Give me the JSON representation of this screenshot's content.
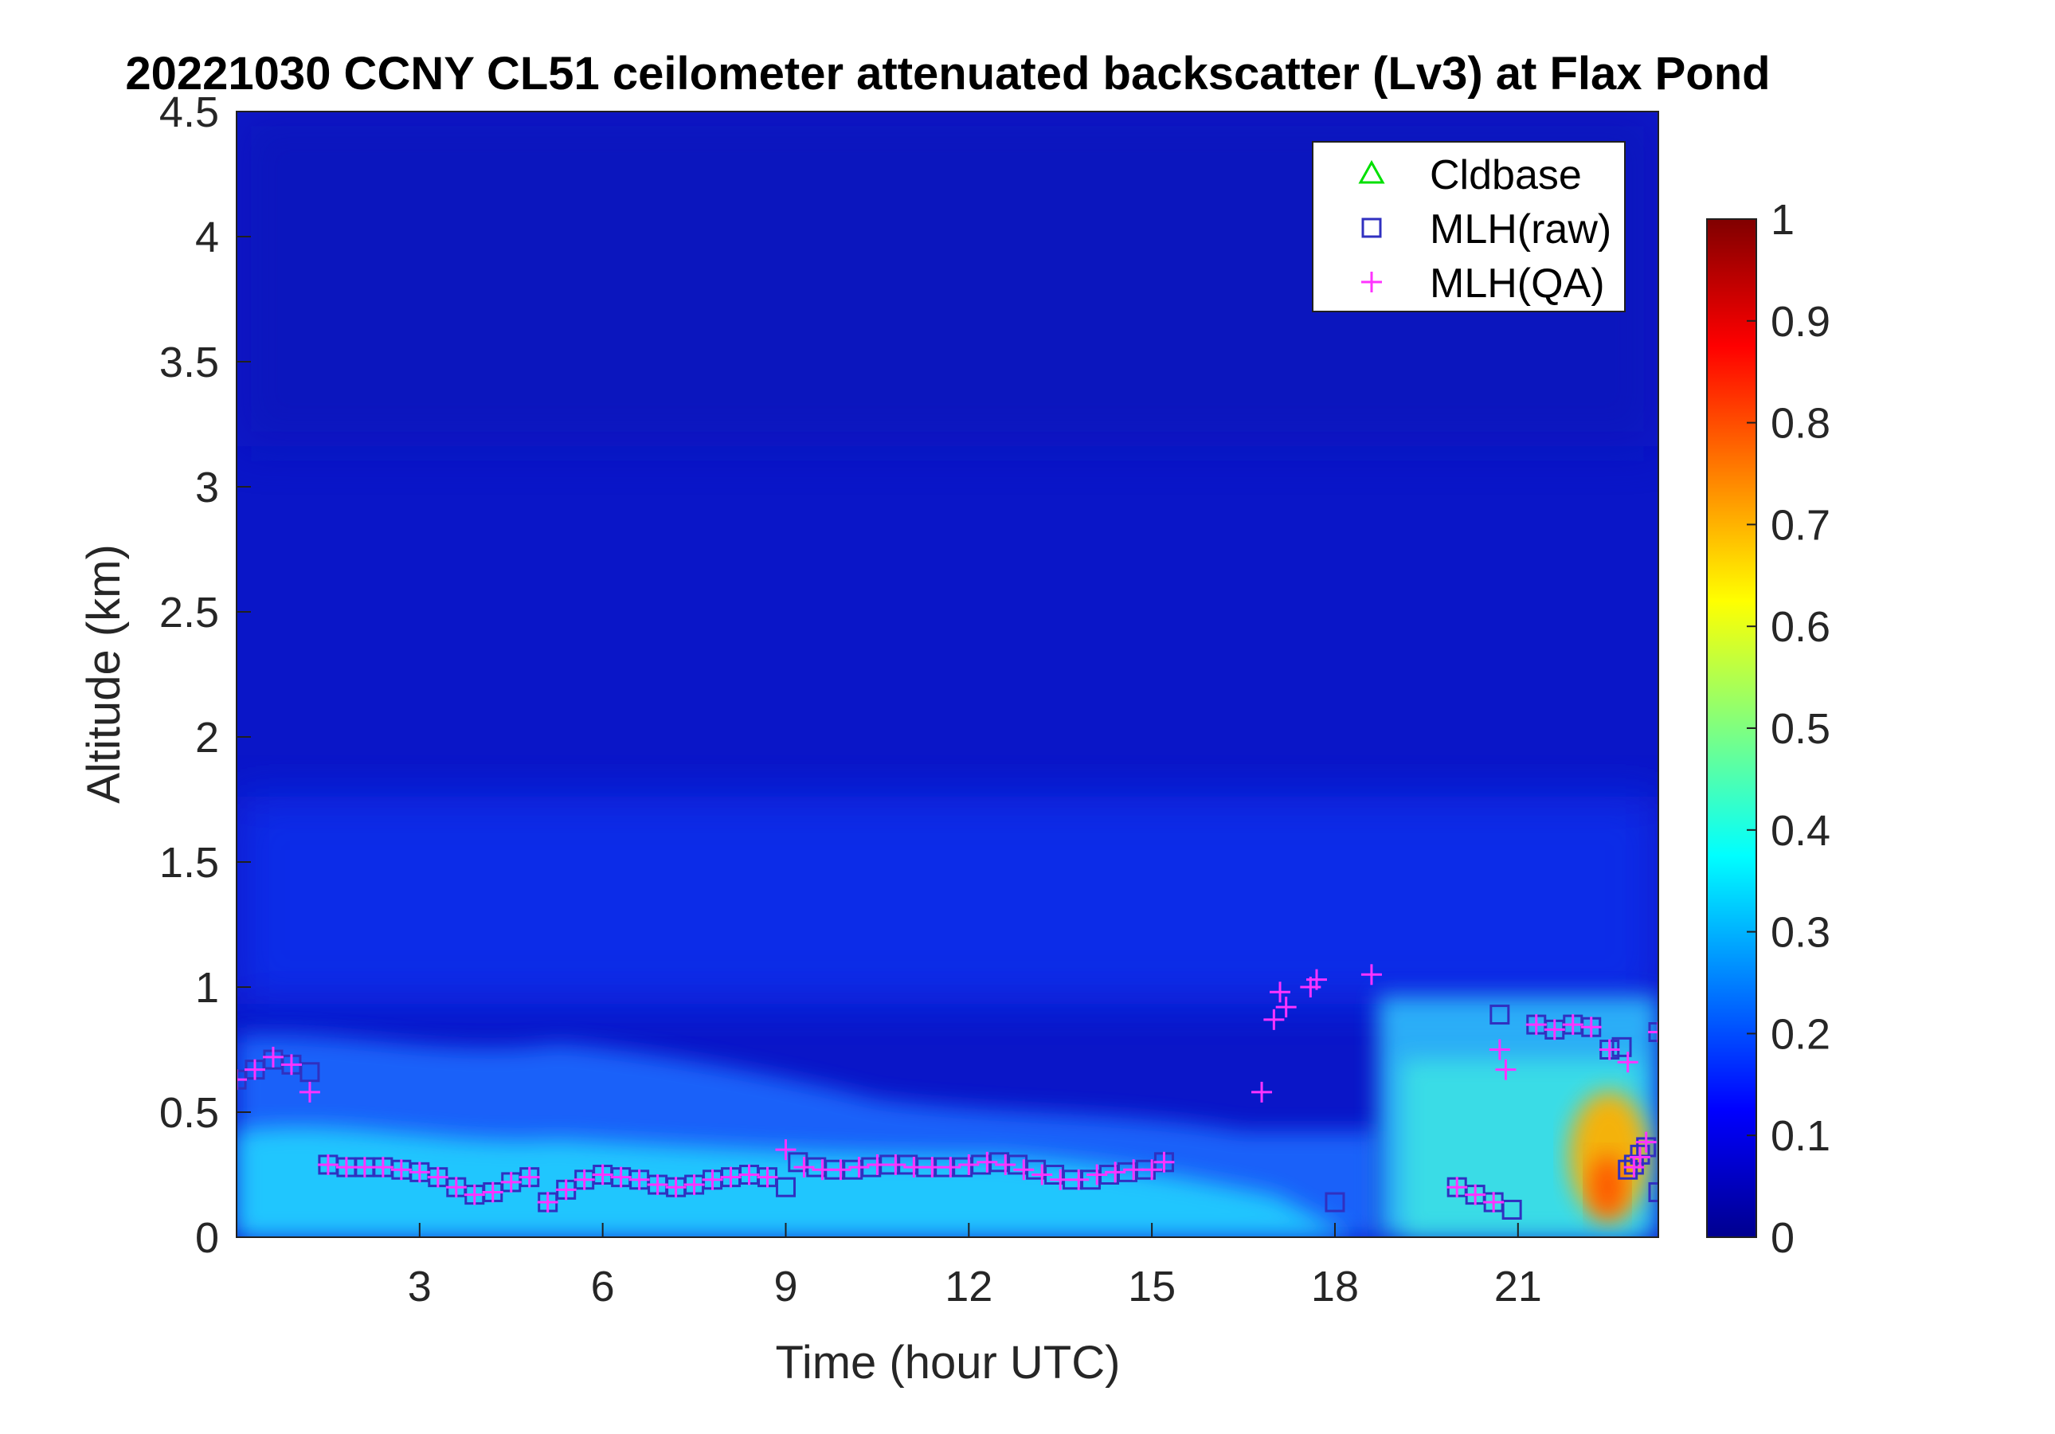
{
  "chart_data": {
    "type": "heatmap",
    "title": "20221030 CCNY CL51 ceilometer attenuated backscatter (Lv3) at Flax Pond",
    "xlabel": "Time (hour UTC)",
    "ylabel": "Altitude (km)",
    "xlim": [
      0.0,
      23.3
    ],
    "ylim": [
      0,
      4.5
    ],
    "x_ticks": [
      3,
      6,
      9,
      12,
      15,
      18,
      21
    ],
    "x_tick_labels": [
      "3",
      "6",
      "9",
      "12",
      "15",
      "18",
      "21"
    ],
    "y_ticks": [
      0,
      0.5,
      1,
      1.5,
      2,
      2.5,
      3,
      3.5,
      4,
      4.5
    ],
    "y_tick_labels": [
      "0",
      "0.5",
      "1",
      "1.5",
      "2",
      "2.5",
      "3",
      "3.5",
      "4",
      "4.5"
    ],
    "colorbar": {
      "colormap": "jet",
      "range": [
        0,
        1
      ],
      "ticks": [
        0,
        0.1,
        0.2,
        0.3,
        0.4,
        0.5,
        0.6,
        0.7,
        0.8,
        0.9,
        1
      ],
      "tick_labels": [
        "0",
        "0.1",
        "0.2",
        "0.3",
        "0.4",
        "0.5",
        "0.6",
        "0.7",
        "0.8",
        "0.9",
        "1"
      ]
    },
    "background_field": {
      "description_values": "approximate normalized backscatter by layer",
      "free_troposphere": 0.05,
      "boundary_layer": 0.35,
      "evening_layer": 0.4,
      "aerosol_plume_peak": 0.72
    },
    "legend": {
      "location": "top-right",
      "entries": [
        {
          "name": "Cldbase",
          "marker": "triangle",
          "color": "#00e000"
        },
        {
          "name": "MLH(raw)",
          "marker": "square",
          "color": "#3030c0"
        },
        {
          "name": "MLH(QA)",
          "marker": "plus",
          "color": "#ff33ff"
        }
      ]
    },
    "series": [
      {
        "name": "Cldbase",
        "marker": "triangle",
        "color": "#00e000",
        "x": [],
        "y": []
      },
      {
        "name": "MLH(raw)",
        "marker": "square",
        "color": "#3030c0",
        "x": [
          0.0,
          0.3,
          0.6,
          0.9,
          1.2,
          1.5,
          1.8,
          2.1,
          2.4,
          2.7,
          3.0,
          3.3,
          3.6,
          3.9,
          4.2,
          4.5,
          4.8,
          5.1,
          5.4,
          5.7,
          6.0,
          6.3,
          6.6,
          6.9,
          7.2,
          7.5,
          7.8,
          8.1,
          8.4,
          8.7,
          9.0,
          9.2,
          9.5,
          9.8,
          10.1,
          10.4,
          10.7,
          11.0,
          11.3,
          11.6,
          11.9,
          12.2,
          12.5,
          12.8,
          13.1,
          13.4,
          13.7,
          14.0,
          14.3,
          14.6,
          14.9,
          15.2,
          18.0,
          20.0,
          20.3,
          20.6,
          20.9,
          20.7,
          21.3,
          21.6,
          21.9,
          22.2,
          22.5,
          22.7,
          22.8,
          22.9,
          23.0,
          23.1,
          23.3,
          23.3
        ],
        "y": [
          0.63,
          0.67,
          0.71,
          0.69,
          0.66,
          0.29,
          0.28,
          0.28,
          0.28,
          0.27,
          0.26,
          0.24,
          0.2,
          0.17,
          0.18,
          0.22,
          0.24,
          0.14,
          0.19,
          0.23,
          0.25,
          0.24,
          0.23,
          0.21,
          0.2,
          0.21,
          0.23,
          0.24,
          0.25,
          0.24,
          0.2,
          0.3,
          0.28,
          0.27,
          0.27,
          0.28,
          0.29,
          0.29,
          0.28,
          0.28,
          0.28,
          0.29,
          0.3,
          0.29,
          0.27,
          0.25,
          0.23,
          0.23,
          0.25,
          0.26,
          0.27,
          0.3,
          0.14,
          0.2,
          0.17,
          0.14,
          0.11,
          0.89,
          0.85,
          0.83,
          0.85,
          0.84,
          0.75,
          0.76,
          0.27,
          0.29,
          0.33,
          0.36,
          0.82,
          0.18
        ]
      },
      {
        "name": "MLH(QA)",
        "marker": "plus",
        "color": "#ff33ff",
        "x": [
          0.0,
          0.3,
          0.6,
          0.9,
          1.2,
          1.5,
          1.8,
          2.1,
          2.4,
          2.7,
          3.0,
          3.3,
          3.6,
          3.9,
          4.2,
          4.5,
          4.8,
          5.1,
          5.4,
          5.7,
          6.0,
          6.3,
          6.6,
          6.9,
          7.2,
          7.5,
          7.8,
          8.1,
          8.4,
          8.7,
          9.0,
          9.3,
          9.6,
          9.9,
          10.2,
          10.5,
          10.8,
          11.1,
          11.4,
          11.7,
          12.0,
          12.3,
          12.6,
          12.9,
          13.2,
          13.5,
          13.8,
          14.1,
          14.4,
          14.7,
          15.0,
          15.2,
          16.8,
          17.0,
          17.1,
          17.2,
          17.6,
          17.7,
          18.6,
          20.0,
          20.3,
          20.6,
          20.7,
          20.8,
          21.3,
          21.6,
          21.9,
          22.2,
          22.5,
          22.8,
          22.9,
          23.0,
          23.1,
          23.3
        ],
        "y": [
          0.63,
          0.67,
          0.72,
          0.69,
          0.58,
          0.29,
          0.28,
          0.28,
          0.28,
          0.27,
          0.26,
          0.24,
          0.2,
          0.17,
          0.18,
          0.22,
          0.24,
          0.14,
          0.19,
          0.23,
          0.25,
          0.24,
          0.23,
          0.21,
          0.2,
          0.21,
          0.23,
          0.24,
          0.25,
          0.24,
          0.35,
          0.28,
          0.27,
          0.27,
          0.28,
          0.29,
          0.29,
          0.28,
          0.28,
          0.28,
          0.29,
          0.3,
          0.29,
          0.27,
          0.25,
          0.23,
          0.23,
          0.25,
          0.26,
          0.27,
          0.27,
          0.3,
          0.58,
          0.87,
          0.98,
          0.92,
          1.0,
          1.03,
          1.05,
          0.2,
          0.17,
          0.14,
          0.75,
          0.67,
          0.85,
          0.83,
          0.85,
          0.84,
          0.75,
          0.7,
          0.28,
          0.32,
          0.38,
          0.82
        ]
      }
    ]
  }
}
